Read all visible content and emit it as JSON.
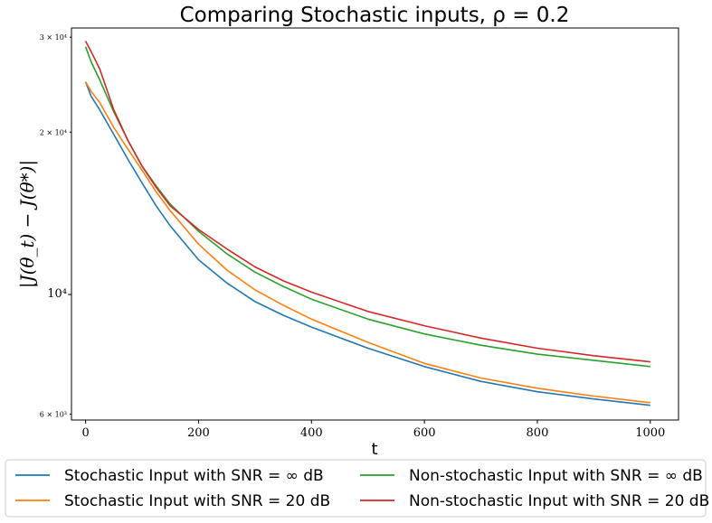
{
  "chart_data": {
    "type": "line",
    "title": "Comparing Stochastic inputs, ρ = 0.2",
    "xlabel": "t",
    "ylabel": "|J(θ_t) − J(θ*)|",
    "xlim": [
      -25,
      1050
    ],
    "ylim": [
      5850,
      31200
    ],
    "yscale": "log",
    "grid": false,
    "legend_position": "below-plot",
    "x_ticks": [
      0,
      200,
      400,
      600,
      800,
      1000
    ],
    "x_tick_labels": [
      "0",
      "200",
      "400",
      "600",
      "800",
      "1000"
    ],
    "y_ticks": [
      6000,
      10000,
      20000,
      30000
    ],
    "y_tick_labels": [
      "6 × 10³",
      "10⁴",
      "2 × 10⁴",
      "3 × 10⁴"
    ],
    "x": [
      0,
      10,
      25,
      50,
      75,
      100,
      125,
      150,
      200,
      250,
      300,
      350,
      400,
      500,
      600,
      700,
      800,
      900,
      1000
    ],
    "series": [
      {
        "name": "Stochastic Input with SNR = ∞ dB",
        "color": "#1f77b4",
        "values": [
          24800,
          23300,
          22000,
          19800,
          17800,
          16100,
          14600,
          13400,
          11600,
          10500,
          9700,
          9150,
          8700,
          7950,
          7350,
          6900,
          6600,
          6400,
          6230
        ]
      },
      {
        "name": "Stochastic Input with SNR = 20 dB",
        "color": "#ff7f0e",
        "values": [
          24800,
          23800,
          22700,
          20400,
          18600,
          17000,
          15500,
          14300,
          12400,
          11100,
          10200,
          9550,
          9000,
          8150,
          7450,
          7000,
          6700,
          6480,
          6300
        ]
      },
      {
        "name": "Non-stochastic Input with SNR = ∞ dB",
        "color": "#2ca02c",
        "values": [
          28800,
          27000,
          25000,
          21800,
          19300,
          17300,
          15900,
          14700,
          13100,
          11900,
          11000,
          10350,
          9800,
          9000,
          8450,
          8050,
          7750,
          7550,
          7350
        ]
      },
      {
        "name": "Non-stochastic Input with SNR = 20 dB",
        "color": "#d62728",
        "values": [
          29500,
          28200,
          26200,
          22000,
          19300,
          17300,
          15800,
          14600,
          13200,
          12150,
          11250,
          10600,
          10100,
          9300,
          8750,
          8300,
          7950,
          7700,
          7500
        ]
      }
    ]
  }
}
